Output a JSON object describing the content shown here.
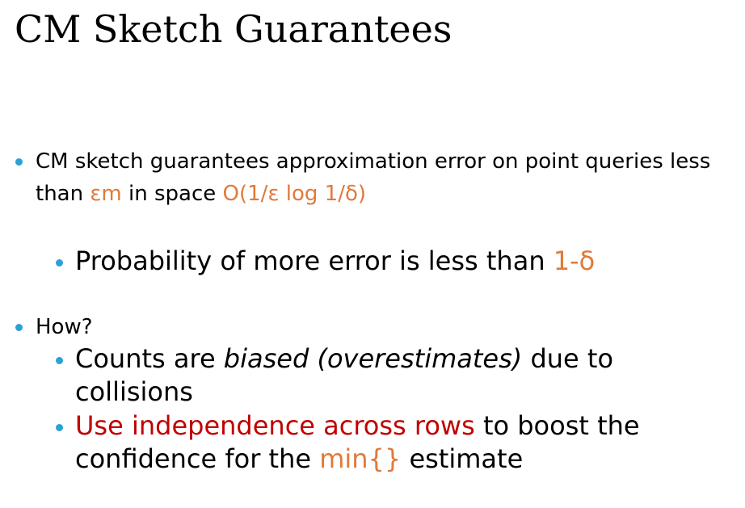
{
  "title": "CM Sketch Guarantees",
  "bullets": {
    "b1": {
      "text1": "CM sketch guarantees approximation error on point queries less than ",
      "hl1": "εm",
      "text2": " in space ",
      "hl2": "O(1/ε log 1/δ)"
    },
    "b1a": {
      "text1": "Probability of more error is less than ",
      "hl1": "1-δ"
    },
    "b2": {
      "text": "How?"
    },
    "b2a": {
      "text1": "Counts are ",
      "italic": "biased (overestimates)",
      "text2": " due to collisions"
    },
    "b2b": {
      "red": "Use independence across rows",
      "text1": " to boost the confidence for the ",
      "hl1": "min{}",
      "text2": " estimate"
    }
  },
  "colors": {
    "bullet": "#2aa1d8",
    "highlight_orange": "#e07a3a",
    "highlight_red": "#c00000"
  }
}
